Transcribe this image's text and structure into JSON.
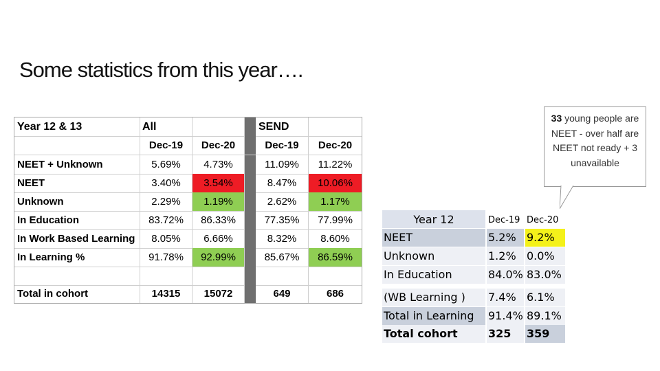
{
  "title": "Some statistics from this year….",
  "left_table": {
    "group_label": "Year 12 & 13",
    "group_all": "All",
    "group_send": "SEND",
    "columns": [
      "Dec-19",
      "Dec-20",
      "Dec-19",
      "Dec-20"
    ],
    "rows": [
      {
        "label": "NEET + Unknown",
        "values": [
          "5.69%",
          "4.73%",
          "11.09%",
          "11.22%"
        ]
      },
      {
        "label": "NEET",
        "values": [
          "3.40%",
          "3.54%",
          "8.47%",
          "10.06%"
        ]
      },
      {
        "label": "Unknown",
        "values": [
          "2.29%",
          "1.19%",
          "2.62%",
          "1.17%"
        ]
      },
      {
        "label": "In Education",
        "values": [
          "83.72%",
          "86.33%",
          "77.35%",
          "77.99%"
        ]
      },
      {
        "label": "In Work Based Learning",
        "values": [
          "8.05%",
          "6.66%",
          "8.32%",
          "8.60%"
        ]
      },
      {
        "label": "In Learning %",
        "values": [
          "91.78%",
          "92.99%",
          "85.67%",
          "86.59%"
        ]
      }
    ],
    "total": {
      "label": "Total in cohort",
      "values": [
        "14315",
        "15072",
        "649",
        "686"
      ]
    },
    "highlight_colors": {
      "red": "#ee1c25",
      "green": "#8fce53"
    }
  },
  "callout": {
    "number": "33",
    "text": "young people are NEET - over half are  NEET not ready + 3 unavailable"
  },
  "right_table": {
    "header": {
      "label": "Year 12",
      "col1": "Dec-19",
      "col2": "Dec-20"
    },
    "rows": [
      {
        "label": "NEET",
        "v1": "5.2%",
        "v2": "9.2%"
      },
      {
        "label": "Unknown",
        "v1": "1.2%",
        "v2": "0.0%"
      },
      {
        "label": "In Education",
        "v1": "84.0%",
        "v2": "83.0%"
      },
      {
        "label": "(WB Learning )",
        "v1": "7.4%",
        "v2": "6.1%"
      },
      {
        "label": "Total in Learning",
        "v1": "91.4%",
        "v2": "89.1%"
      },
      {
        "label": "Total cohort",
        "v1": "325",
        "v2": "359"
      }
    ],
    "highlight_color": "#f4f11a"
  }
}
